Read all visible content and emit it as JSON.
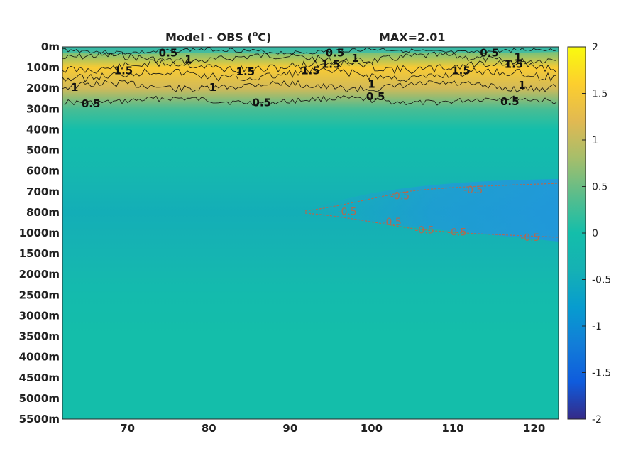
{
  "chart_data": {
    "type": "heatmap",
    "title_left": "Model - OBS (",
    "title_unit_sup": "o",
    "title_unit": "C)",
    "title_right": "MAX=2.01",
    "y_tick_labels": [
      "0m",
      "100m",
      "200m",
      "300m",
      "400m",
      "500m",
      "600m",
      "700m",
      "800m",
      "1000m",
      "1500m",
      "2000m",
      "2500m",
      "3000m",
      "3500m",
      "4000m",
      "4500m",
      "5000m",
      "5500m"
    ],
    "x_ticks": [
      70,
      80,
      90,
      100,
      110,
      120
    ],
    "x_tick_labels": [
      "70",
      "80",
      "90",
      "100",
      "110",
      "120"
    ],
    "xlim": [
      62,
      123
    ],
    "colorbar": {
      "colormap": "parula",
      "clim": [
        -2,
        2
      ],
      "ticks": [
        2,
        1.5,
        1,
        0.5,
        0,
        -0.5,
        -1,
        -1.5,
        -2
      ],
      "tick_labels": [
        "2",
        "1.5",
        "1",
        "0.5",
        "0",
        "-0.5",
        "-1",
        "-1.5",
        "-2"
      ]
    },
    "field_by_depth_level": [
      {
        "depth": "0m",
        "value": 0.3
      },
      {
        "depth": "100m",
        "value": 1.55
      },
      {
        "depth": "200m",
        "value": 1.1
      },
      {
        "depth": "300m",
        "value": 0.3
      },
      {
        "depth": "400m",
        "value": 0.0
      },
      {
        "depth": "500m",
        "value": -0.1
      },
      {
        "depth": "600m",
        "value": -0.2
      },
      {
        "depth": "700m",
        "value": -0.35
      },
      {
        "depth": "800m",
        "value": -0.45
      },
      {
        "depth": "1000m",
        "value": -0.4
      },
      {
        "depth": "1500m",
        "value": -0.3
      },
      {
        "depth": "2000m",
        "value": -0.2
      },
      {
        "depth": "2500m",
        "value": -0.1
      },
      {
        "depth": "3000m",
        "value": -0.05
      },
      {
        "depth": "3500m",
        "value": 0.0
      },
      {
        "depth": "4000m",
        "value": 0.0
      },
      {
        "depth": "4500m",
        "value": 0.0
      },
      {
        "depth": "5000m",
        "value": 0.0
      },
      {
        "depth": "5500m",
        "value": 0.0
      }
    ],
    "contour_labels_positive": [
      {
        "text": "0.5",
        "x": 75,
        "depth_level": 0.3
      },
      {
        "text": "1",
        "x": 77.5,
        "depth_level": 0.6
      },
      {
        "text": "1.5",
        "x": 69.5,
        "depth_level": 1.15
      },
      {
        "text": "1.5",
        "x": 84.5,
        "depth_level": 1.2
      },
      {
        "text": "1.5",
        "x": 92.5,
        "depth_level": 1.15
      },
      {
        "text": "0.5",
        "x": 95.5,
        "depth_level": 0.3
      },
      {
        "text": "1",
        "x": 98,
        "depth_level": 0.55
      },
      {
        "text": "1.5",
        "x": 95,
        "depth_level": 0.85
      },
      {
        "text": "1.5",
        "x": 111,
        "depth_level": 1.15
      },
      {
        "text": "0.5",
        "x": 114.5,
        "depth_level": 0.3
      },
      {
        "text": "1",
        "x": 118,
        "depth_level": 0.5
      },
      {
        "text": "1.5",
        "x": 117.5,
        "depth_level": 0.85
      },
      {
        "text": "1",
        "x": 63.5,
        "depth_level": 1.95
      },
      {
        "text": "1",
        "x": 80.5,
        "depth_level": 1.95
      },
      {
        "text": "1",
        "x": 100,
        "depth_level": 1.8
      },
      {
        "text": "1",
        "x": 118.5,
        "depth_level": 1.85
      },
      {
        "text": "0.5",
        "x": 65.5,
        "depth_level": 2.75
      },
      {
        "text": "0.5",
        "x": 86.5,
        "depth_level": 2.7
      },
      {
        "text": "0.5",
        "x": 100.5,
        "depth_level": 2.4
      },
      {
        "text": "0.5",
        "x": 117,
        "depth_level": 2.65
      }
    ],
    "contour_labels_negative": [
      {
        "text": "-0.5",
        "x": 103.5,
        "depth_level": 7.2
      },
      {
        "text": "-0.5",
        "x": 112.5,
        "depth_level": 6.9
      },
      {
        "text": "-0.5",
        "x": 97,
        "depth_level": 7.95
      },
      {
        "text": "-0.5",
        "x": 102.5,
        "depth_level": 8.45
      },
      {
        "text": "-0.5",
        "x": 106.5,
        "depth_level": 8.85
      },
      {
        "text": "-0.5",
        "x": 110.5,
        "depth_level": 8.95
      },
      {
        "text": "-0.5",
        "x": 119.5,
        "depth_level": 9.2
      }
    ]
  }
}
